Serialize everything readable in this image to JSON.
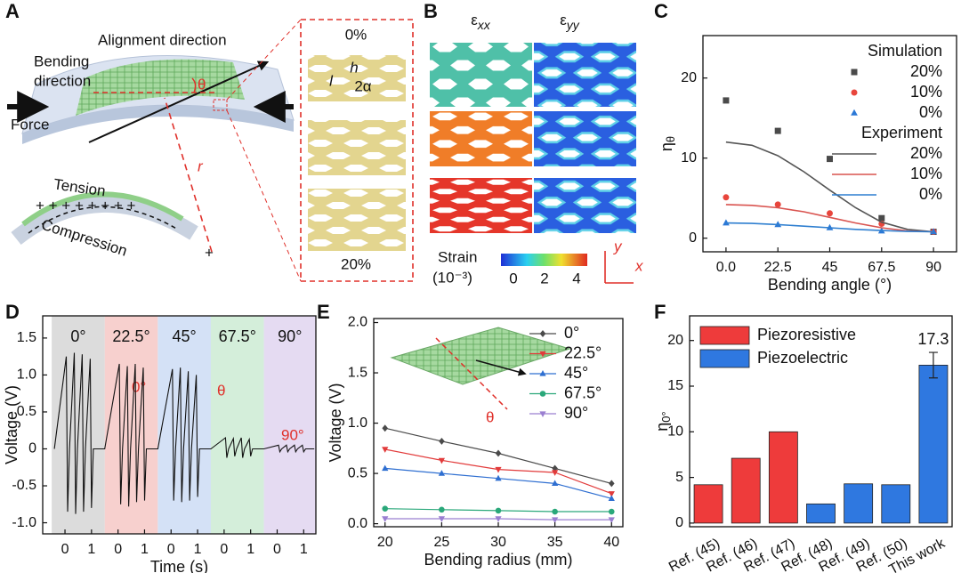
{
  "panels": {
    "A": {
      "label": "A",
      "alignment": "Alignment direction",
      "bending": [
        "Bending",
        "direction"
      ],
      "force": "Force",
      "theta": "θ",
      "radius": "r",
      "tension": "Tension",
      "compression": "Compression",
      "strain_top": "0%",
      "h": "h",
      "l": "l",
      "alpha": "2α",
      "strain_bottom": "20%"
    },
    "B": {
      "label": "B",
      "exx": {
        "symbol": "ε",
        "subscript": "xx"
      },
      "eyy": {
        "symbol": "ε",
        "subscript": "yy"
      },
      "strain": "Strain",
      "unit": "(10⁻³)",
      "colorbar_ticks": [
        0,
        2,
        4
      ],
      "y": "y",
      "x": "x"
    }
  },
  "chart_data": [
    {
      "panel": "C",
      "type": "scatter",
      "xlabel": "Bending angle (°)",
      "ylabel": {
        "symbol": "η",
        "subscript": "θ"
      },
      "xlim": [
        -10,
        100
      ],
      "ylim": [
        -1.7,
        25.3
      ],
      "xticks": [
        {
          "value": 0,
          "label": "0.0"
        },
        22.5,
        45,
        67.5,
        90
      ],
      "yticks": [
        0,
        10,
        20
      ],
      "series_groups": [
        {
          "name": "Simulation",
          "mode": "markers",
          "x": [
            0,
            22.5,
            45,
            67.5,
            90
          ],
          "series": [
            {
              "name": "20%",
              "color": "#4a4a4a",
              "marker": "square",
              "values": [
                17.2,
                13.4,
                9.9,
                2.5,
                0.8
              ]
            },
            {
              "name": "10%",
              "color": "#e8453c",
              "marker": "circle",
              "values": [
                5.1,
                4.2,
                3.1,
                1.8,
                0.8
              ]
            },
            {
              "name": "0%",
              "color": "#2b78d6",
              "marker": "triangle",
              "values": [
                1.9,
                1.7,
                1.3,
                0.9,
                0.8
              ]
            }
          ]
        },
        {
          "name": "Experiment",
          "mode": "line",
          "x": [
            0,
            11.25,
            22.5,
            33.75,
            45,
            56.25,
            67.5,
            78.75,
            90
          ],
          "series": [
            {
              "name": "20%",
              "color": "#555555",
              "values": [
                12,
                11.6,
                10.3,
                8.3,
                6,
                3.8,
                2,
                1.1,
                0.8
              ]
            },
            {
              "name": "10%",
              "color": "#d9534f",
              "values": [
                4.2,
                4.1,
                3.8,
                3.3,
                2.6,
                1.9,
                1.3,
                0.9,
                0.8
              ]
            },
            {
              "name": "0%",
              "color": "#2f7fd0",
              "values": [
                1.9,
                1.85,
                1.7,
                1.5,
                1.3,
                1.1,
                0.95,
                0.85,
                0.8
              ]
            }
          ]
        }
      ]
    },
    {
      "panel": "D",
      "type": "line",
      "xlabel": "Time (s)",
      "ylabel": "Voltage (V)",
      "xlim": [
        -0.84,
        9.46
      ],
      "ylim": [
        -1.15,
        1.8
      ],
      "xticks": [
        0,
        1,
        {
          "value": 2,
          "label": "0"
        },
        {
          "value": 3,
          "label": "1"
        },
        {
          "value": 4,
          "label": "0"
        },
        {
          "value": 5,
          "label": "1"
        },
        {
          "value": 6,
          "label": "0"
        },
        {
          "value": 7,
          "label": "1"
        },
        {
          "value": 8,
          "label": "0"
        },
        {
          "value": 9,
          "label": "1"
        }
      ],
      "yticks": [
        {
          "value": -1,
          "label": "-1.0"
        },
        -0.5,
        0,
        0.5,
        {
          "value": 1,
          "label": "1.0"
        },
        1.5
      ],
      "bands": [
        {
          "label": "0°",
          "from": -0.5,
          "to": 1.5,
          "color": "#d6d6d6"
        },
        {
          "label": "22.5°",
          "from": 1.5,
          "to": 3.5,
          "color": "#f6c8c6"
        },
        {
          "label": "45°",
          "from": 3.5,
          "to": 5.5,
          "color": "#cddcf4"
        },
        {
          "label": "67.5°",
          "from": 5.5,
          "to": 7.5,
          "color": "#cdebd3"
        },
        {
          "label": "90°",
          "from": 7.5,
          "to": 9.5,
          "color": "#e1d5f0"
        }
      ],
      "annotations": [
        "0°",
        "θ",
        "90°"
      ],
      "series": [
        {
          "color": "#111111",
          "x": [
            -0.4,
            0.05,
            0.1,
            0.17,
            0.35,
            0.4,
            0.47,
            0.65,
            0.7,
            0.77,
            0.95,
            1.0,
            1.07,
            1.5,
            2.05,
            2.1,
            2.17,
            2.35,
            2.4,
            2.47,
            2.65,
            2.7,
            2.77,
            2.95,
            3.0,
            3.07,
            3.5,
            4.05,
            4.1,
            4.17,
            4.35,
            4.4,
            4.47,
            4.65,
            4.7,
            4.77,
            4.95,
            5.0,
            5.07,
            5.5,
            6.05,
            6.1,
            6.17,
            6.35,
            6.4,
            6.47,
            6.65,
            6.7,
            6.77,
            6.95,
            7.0,
            7.07,
            7.5,
            8.05,
            8.1,
            8.17,
            8.35,
            8.4,
            8.47,
            8.65,
            8.7,
            8.77,
            8.95,
            9.0,
            9.07,
            9.4
          ],
          "values": [
            0,
            1.25,
            -0.85,
            0,
            1.3,
            -0.88,
            0,
            1.28,
            -0.85,
            0,
            1.22,
            -0.8,
            0,
            0,
            1.15,
            -0.75,
            0,
            1.12,
            -0.78,
            0,
            1.15,
            -0.72,
            0,
            1.1,
            -0.7,
            0,
            0,
            1.08,
            -0.7,
            0,
            1.1,
            -0.72,
            0,
            1.05,
            -0.7,
            0,
            1.0,
            -0.65,
            0,
            0,
            0.15,
            -0.12,
            0,
            0.14,
            -0.1,
            0,
            0.15,
            -0.12,
            0,
            0.13,
            -0.1,
            0,
            0,
            0.05,
            -0.04,
            0,
            0.05,
            -0.04,
            0,
            0.05,
            -0.04,
            0,
            0.05,
            -0.04,
            0,
            0
          ]
        }
      ]
    },
    {
      "panel": "E",
      "type": "line",
      "xlabel": "Bending radius (mm)",
      "ylabel": "Voltage (V)",
      "xlim": [
        19,
        41
      ],
      "ylim": [
        -0.03,
        2.04
      ],
      "x": [
        20,
        25,
        30,
        35,
        40
      ],
      "xticks": [
        20,
        25,
        30,
        35,
        40
      ],
      "yticks": [
        {
          "value": 0,
          "label": "0.0"
        },
        0.5,
        {
          "value": 1,
          "label": "1.0"
        },
        1.5,
        {
          "value": 2,
          "label": "2.0"
        }
      ],
      "annotations": [
        "θ"
      ],
      "series": [
        {
          "name": "0°",
          "color": "#4a4a4a",
          "marker": "diamond",
          "values": [
            0.95,
            0.82,
            0.7,
            0.55,
            0.4
          ]
        },
        {
          "name": "22.5°",
          "color": "#e23b3b",
          "marker": "triangle-down",
          "values": [
            0.74,
            0.63,
            0.54,
            0.51,
            0.3
          ]
        },
        {
          "name": "45°",
          "color": "#2f6fd1",
          "marker": "triangle",
          "values": [
            0.55,
            0.5,
            0.45,
            0.4,
            0.25
          ]
        },
        {
          "name": "67.5°",
          "color": "#2aa87a",
          "marker": "circle",
          "values": [
            0.15,
            0.14,
            0.13,
            0.12,
            0.12
          ]
        },
        {
          "name": "90°",
          "color": "#9a7fd1",
          "marker": "triangle-down",
          "values": [
            0.05,
            0.05,
            0.05,
            0.04,
            0.04
          ]
        }
      ]
    },
    {
      "panel": "F",
      "type": "bar",
      "ylabel": {
        "symbol": "η",
        "subscript": "0°"
      },
      "ylim": [
        -0.4,
        22.7
      ],
      "yticks": [
        0,
        5,
        10,
        15,
        20
      ],
      "categories": [
        "Ref. (45)",
        "Ref. (46)",
        "Ref. (47)",
        "Ref. (48)",
        "Ref. (49)",
        "Ref. (50)",
        "This work"
      ],
      "series": [
        {
          "name": "Piezoresistive",
          "color": "#ee3b3b",
          "values": [
            4.2,
            7.1,
            10,
            null,
            null,
            null,
            null
          ]
        },
        {
          "name": "Piezoelectric",
          "color": "#2f78e0",
          "values": [
            null,
            null,
            null,
            2.1,
            4.3,
            4.2,
            17.3
          ],
          "errors": [
            null,
            null,
            null,
            null,
            null,
            null,
            1.4
          ],
          "value_labels": [
            null,
            null,
            null,
            null,
            null,
            null,
            "17.3"
          ]
        }
      ]
    }
  ]
}
